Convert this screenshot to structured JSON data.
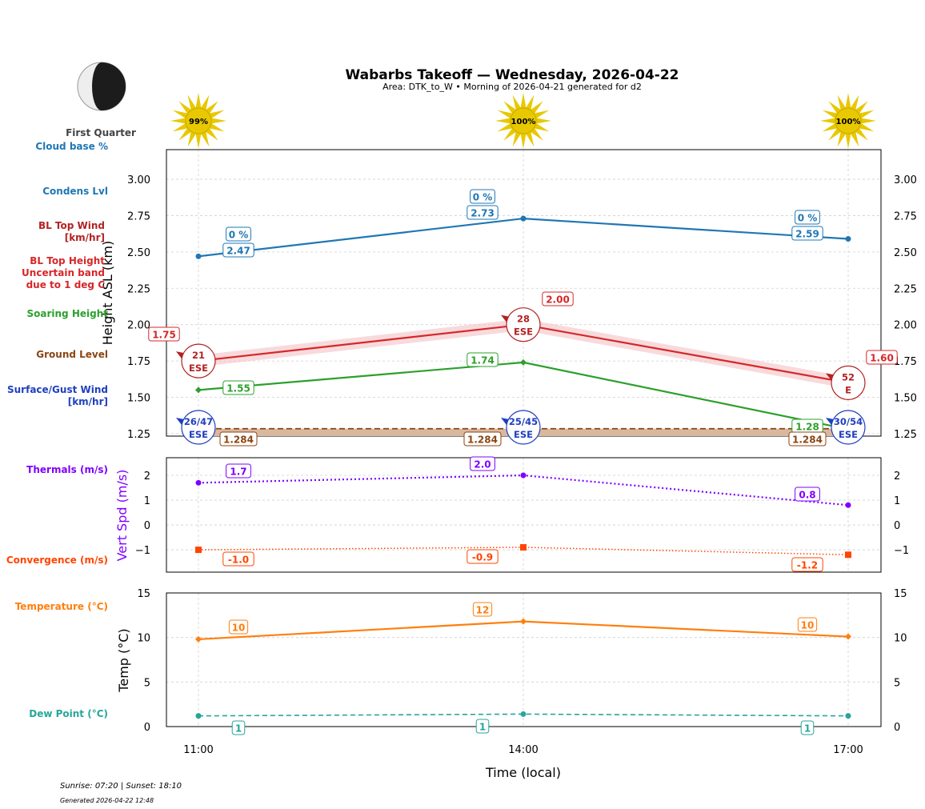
{
  "title": "Wabarbs Takeoff — Wednesday, 2026-04-22",
  "subtitle": "Area: DTK_to_W • Morning of 2026-04-21 generated for d2",
  "moon": {
    "phase": "First Quarter",
    "icon": "moon-first-quarter-icon"
  },
  "sun_percent": [
    "99%",
    "100%",
    "100%"
  ],
  "footer": {
    "sun": "Sunrise: 07:20 | Sunset: 18:10",
    "generated": "Generated 2026-04-22 12:48"
  },
  "legend": {
    "cloud": [
      "Cloud base %"
    ],
    "condens": [
      "Condens Lvl"
    ],
    "bl_wind": [
      "BL Top Wind",
      "[km/hr]"
    ],
    "bl_height": [
      "BL Top Height",
      "Uncertain band",
      "due to 1 deg C"
    ],
    "soaring": [
      "Soaring Height"
    ],
    "ground": [
      "Ground Level"
    ],
    "surface": [
      "Surface/Gust Wind",
      "[km/hr]"
    ],
    "thermals": [
      "Thermals (m/s)"
    ],
    "convergence": [
      "Convergence (m/s)"
    ],
    "temp": [
      "Temperature (°C)"
    ],
    "dew": [
      "Dew Point (°C)"
    ]
  },
  "colors": {
    "condens": "#1f77b4",
    "bl": "#d62728",
    "bl_wind": "#b22222",
    "soaring": "#2ca02c",
    "ground": "#8b4513",
    "surface": "#1f3fbf",
    "thermals": "#7f00ff",
    "convergence": "#ff4500",
    "temp": "#ff7f0e",
    "dew": "#26a69a"
  },
  "chart_data": [
    {
      "type": "line",
      "ylabel": "Height ASL (km)",
      "ylim": [
        1.233,
        3.204
      ],
      "yticks": [
        "1.25",
        "1.50",
        "1.75",
        "2.00",
        "2.25",
        "2.50",
        "2.75",
        "3.00"
      ],
      "x": [
        "11:00",
        "14:00",
        "17:00"
      ],
      "grid": true,
      "series": [
        {
          "name": "Condens Lvl",
          "values": [
            2.47,
            2.73,
            2.59
          ],
          "labels": [
            "2.47",
            "2.73",
            "2.59"
          ]
        },
        {
          "name": "Cloud base %",
          "labels": [
            "0 %",
            "0 %",
            "0 %"
          ]
        },
        {
          "name": "BL Top Height",
          "values": [
            1.75,
            2.0,
            1.6
          ],
          "band": 0.04,
          "labels": [
            "1.75",
            "2.00",
            "1.60"
          ]
        },
        {
          "name": "BL Top Wind",
          "speed": [
            "21",
            "28",
            "52"
          ],
          "dir": [
            "ESE",
            "ESE",
            "E"
          ]
        },
        {
          "name": "Soaring Height",
          "values": [
            1.55,
            1.74,
            1.28
          ],
          "labels": [
            "1.55",
            "1.74",
            "1.28"
          ]
        },
        {
          "name": "Ground Level",
          "values": [
            1.284,
            1.284,
            1.284
          ],
          "labels": [
            "1.284",
            "1.284",
            "1.284"
          ]
        },
        {
          "name": "Surface/Gust Wind",
          "speed": [
            "26/47",
            "25/45",
            "30/54"
          ],
          "dir": [
            "ESE",
            "ESE",
            "ESE"
          ]
        }
      ]
    },
    {
      "type": "line",
      "ylabel": "Vert Spd (m/s)",
      "ylim": [
        -1.9,
        2.71
      ],
      "yticks": [
        "−1",
        "0",
        "1",
        "2"
      ],
      "grid": true,
      "series": [
        {
          "name": "Thermals (m/s)",
          "values": [
            1.7,
            2.0,
            0.8
          ],
          "labels": [
            "1.7",
            "2.0",
            "0.8"
          ]
        },
        {
          "name": "Convergence (m/s)",
          "values": [
            -1.0,
            -0.9,
            -1.2
          ],
          "labels": [
            "-1.0",
            "-0.9",
            "-1.2"
          ]
        }
      ]
    },
    {
      "type": "line",
      "ylabel": "Temp (°C)",
      "xlabel": "Time (local)",
      "ylim": [
        0,
        15
      ],
      "yticks": [
        "0",
        "5",
        "10",
        "15"
      ],
      "grid": true,
      "x": [
        "11:00",
        "14:00",
        "17:00"
      ],
      "series": [
        {
          "name": "Temperature (°C)",
          "values": [
            9.8,
            11.8,
            10.1
          ],
          "labels": [
            "10",
            "12",
            "10"
          ]
        },
        {
          "name": "Dew Point (°C)",
          "values": [
            1.2,
            1.4,
            1.2
          ],
          "labels": [
            "1",
            "1",
            "1"
          ]
        }
      ]
    }
  ]
}
